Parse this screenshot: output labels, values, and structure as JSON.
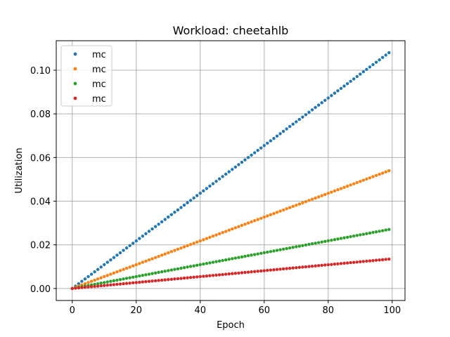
{
  "chart_data": {
    "type": "scatter",
    "title": "Workload: cheetahlb",
    "xlabel": "Epoch",
    "ylabel": "Utilization",
    "xlim": [
      -5,
      104
    ],
    "ylim": [
      -0.0055,
      0.1135
    ],
    "xticks": [
      0,
      20,
      40,
      60,
      80,
      100
    ],
    "xtick_labels": [
      "0",
      "20",
      "40",
      "60",
      "80",
      "100"
    ],
    "yticks": [
      0.0,
      0.02,
      0.04,
      0.06,
      0.08,
      0.1
    ],
    "ytick_labels": [
      "0.00",
      "0.02",
      "0.04",
      "0.06",
      "0.08",
      "0.10"
    ],
    "grid": true,
    "legend_position": "top-left",
    "x": {
      "start": 0,
      "end": 99,
      "step": 1
    },
    "series": [
      {
        "name": "mc",
        "color": "#1f77b4",
        "slope": 0.001091
      },
      {
        "name": "mc",
        "color": "#ff7f0e",
        "slope": 0.000545
      },
      {
        "name": "mc",
        "color": "#2ca02c",
        "slope": 0.000273
      },
      {
        "name": "mc",
        "color": "#d62728",
        "slope": 0.000136
      }
    ]
  }
}
